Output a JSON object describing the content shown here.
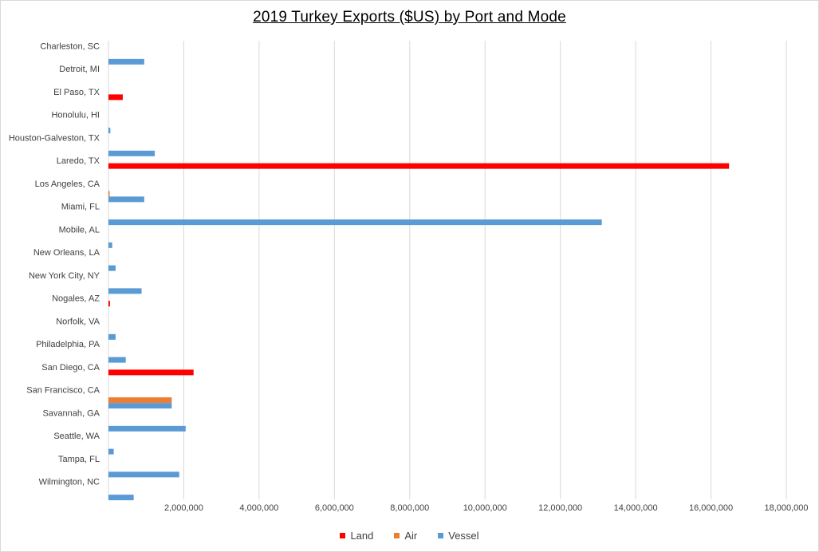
{
  "chart_data": {
    "type": "bar",
    "orientation": "horizontal",
    "title": "2019 Turkey Exports ($US) by Port and Mode",
    "categories": [
      "Charleston, SC",
      "Detroit, MI",
      "El Paso, TX",
      "Honolulu, HI",
      "Houston-Galveston, TX",
      "Laredo, TX",
      "Los Angeles, CA",
      "Miami, FL",
      "Mobile, AL",
      "New Orleans, LA",
      "New York City, NY",
      "Nogales, AZ",
      "Norfolk, VA",
      "Philadelphia, PA",
      "San Diego, CA",
      "San Francisco, CA",
      "Savannah, GA",
      "Seattle, WA",
      "Tampa, FL",
      "Wilmington, NC"
    ],
    "series": [
      {
        "name": "Land",
        "color": "#ff0000",
        "values": [
          0,
          0,
          380000,
          0,
          0,
          16480000,
          0,
          0,
          0,
          0,
          0,
          40000,
          0,
          0,
          2260000,
          0,
          0,
          0,
          0,
          0
        ]
      },
      {
        "name": "Air",
        "color": "#ed7d31",
        "values": [
          0,
          0,
          0,
          0,
          0,
          0,
          30000,
          0,
          0,
          0,
          0,
          0,
          0,
          0,
          0,
          1680000,
          0,
          0,
          0,
          0
        ]
      },
      {
        "name": "Vessel",
        "color": "#5b9bd5",
        "values": [
          950000,
          0,
          0,
          50000,
          1230000,
          0,
          950000,
          13100000,
          100000,
          190000,
          880000,
          0,
          190000,
          460000,
          0,
          1680000,
          2050000,
          140000,
          1880000,
          670000
        ]
      }
    ],
    "xlim": [
      0,
      18000000
    ],
    "xticks": [
      "2,000,000",
      "4,000,000",
      "6,000,000",
      "8,000,000",
      "10,000,000",
      "12,000,000",
      "14,000,000",
      "16,000,000",
      "18,000,000"
    ],
    "xtick_values": [
      2000000,
      4000000,
      6000000,
      8000000,
      10000000,
      12000000,
      14000000,
      16000000,
      18000000
    ],
    "grid": true,
    "legend_position": "bottom"
  }
}
